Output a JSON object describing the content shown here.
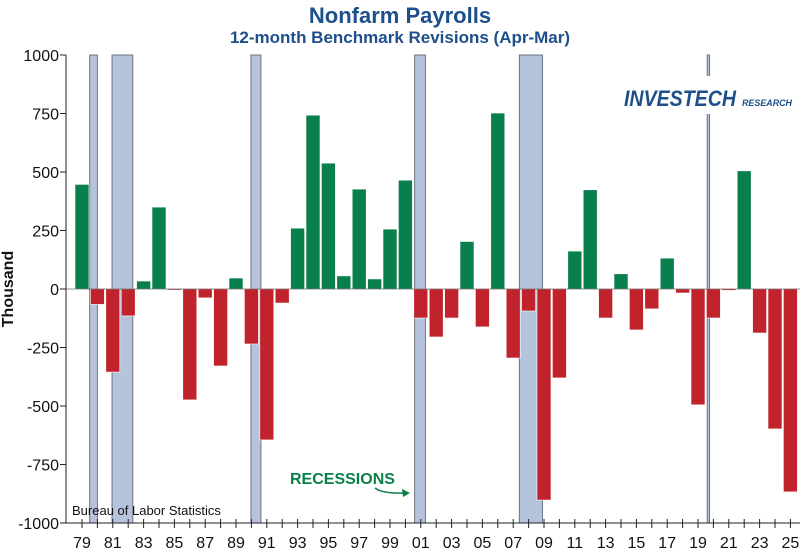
{
  "chart_data": {
    "type": "bar",
    "title": "Nonfarm Payrolls",
    "subtitle": "12-month Benchmark Revisions (Apr-Mar)",
    "xlabel": "",
    "ylabel": "Thousand",
    "ylim": [
      -1000,
      1000
    ],
    "yticks": [
      1000,
      750,
      500,
      250,
      0,
      -250,
      -500,
      -750,
      -1000
    ],
    "xtick_labels": [
      "79",
      "81",
      "83",
      "85",
      "87",
      "89",
      "91",
      "93",
      "95",
      "97",
      "99",
      "01",
      "03",
      "05",
      "07",
      "09",
      "11",
      "13",
      "15",
      "17",
      "19",
      "21",
      "23",
      "25"
    ],
    "x": [
      1979,
      1980,
      1981,
      1982,
      1983,
      1984,
      1985,
      1986,
      1987,
      1988,
      1989,
      1990,
      1991,
      1992,
      1993,
      1994,
      1995,
      1996,
      1997,
      1998,
      1999,
      2000,
      2001,
      2002,
      2003,
      2004,
      2005,
      2006,
      2007,
      2008,
      2009,
      2010,
      2011,
      2012,
      2013,
      2014,
      2015,
      2016,
      2017,
      2018,
      2019,
      2020,
      2021,
      2022,
      2023,
      2024,
      2025
    ],
    "values": [
      447,
      -66,
      -355,
      -115,
      34,
      350,
      -5,
      -474,
      -38,
      -329,
      47,
      -235,
      -645,
      -60,
      260,
      743,
      538,
      56,
      427,
      43,
      256,
      465,
      -124,
      -205,
      -124,
      203,
      -162,
      752,
      -295,
      -94,
      -902,
      -380,
      162,
      424,
      -124,
      65,
      -175,
      -85,
      132,
      -17,
      -495,
      -124,
      -6,
      505,
      -188,
      -598,
      -867
    ],
    "positive_color": "#087f4c",
    "negative_color": "#c0232b",
    "recession_color": "#b6c3dc",
    "recessions": [
      [
        1979.5,
        1980.0
      ],
      [
        1980.95,
        1982.3
      ],
      [
        1989.97,
        1990.62
      ],
      [
        2000.6,
        2001.3
      ],
      [
        2007.4,
        2008.9
      ],
      [
        2019.6,
        2019.75
      ]
    ],
    "annotation": "RECESSIONS",
    "source": "Bureau of Labor Statistics",
    "grid": false,
    "legend": "none"
  },
  "logo": {
    "text": "INVESTECH",
    "subtext": "RESEARCH"
  }
}
